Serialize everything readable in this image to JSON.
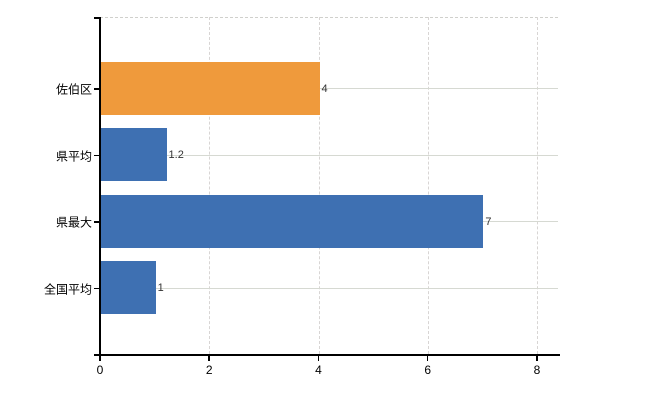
{
  "chart": {
    "background_color": "#ffffff",
    "axis_color": "#000000",
    "horizontal_grid_color": "#d6d9d2",
    "vertical_grid_color": "#d8d5d4",
    "label_color": "#000000",
    "value_label_color": "#333333"
  },
  "chart_data": {
    "type": "bar",
    "orientation": "horizontal",
    "title": "",
    "xlabel": "",
    "ylabel": "",
    "categories": [
      "佐伯区",
      "県平均",
      "県最大",
      "全国平均"
    ],
    "values": [
      4,
      1.2,
      7,
      1
    ],
    "value_labels": [
      "4",
      "1.2",
      "7",
      "1"
    ],
    "bar_colors": [
      "#ef9a3c",
      "#3e70b2",
      "#3e70b2",
      "#3e70b2"
    ],
    "highlight_color": "#ef9a3c",
    "default_bar_color": "#3e70b2",
    "xlim": [
      0,
      8.4
    ],
    "x_ticks": [
      0,
      2,
      4,
      6,
      8
    ],
    "x_tick_labels": [
      "0",
      "2",
      "4",
      "6",
      "8"
    ],
    "grid": true,
    "legend": false
  }
}
